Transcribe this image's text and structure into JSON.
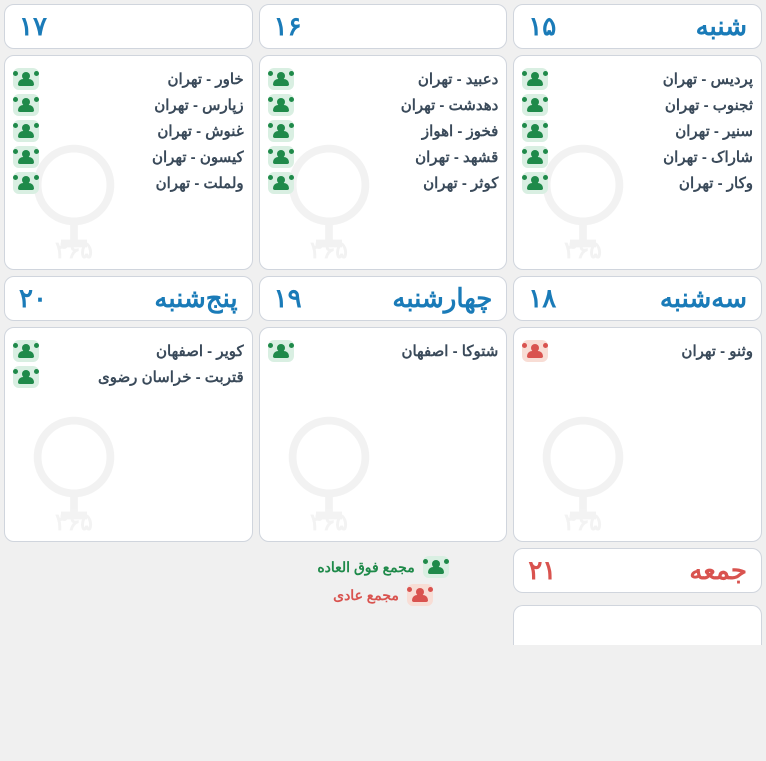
{
  "colors": {
    "header_text": "#1a7bb8",
    "holiday_text": "#d9534f",
    "event_text": "#3a4a5a",
    "icon_green_bg": "#d9efe2",
    "icon_green_fg": "#1f8a4a",
    "icon_red_bg": "#f8ddd5",
    "icon_red_fg": "#d9534f",
    "card_bg": "#ffffff",
    "card_border": "#d0d5dd",
    "page_bg": "#f0f0f0"
  },
  "watermark_text": "رهآورد ۳۶۵",
  "days": [
    {
      "name": "شنبه",
      "num": "۱۵",
      "holiday": false,
      "events": [
        {
          "text": "پردیس - تهران",
          "type": "green"
        },
        {
          "text": "ثجنوب - تهران",
          "type": "green"
        },
        {
          "text": "سنیر - تهران",
          "type": "green"
        },
        {
          "text": "شاراک - تهران",
          "type": "green"
        },
        {
          "text": "وکار - تهران",
          "type": "green"
        }
      ]
    },
    {
      "name": "",
      "num": "۱۶",
      "holiday": false,
      "events": [
        {
          "text": "دعبید - تهران",
          "type": "green"
        },
        {
          "text": "دهدشت - تهران",
          "type": "green"
        },
        {
          "text": "فخوز - اهواز",
          "type": "green"
        },
        {
          "text": "قشهد - تهران",
          "type": "green"
        },
        {
          "text": "کوثر - تهران",
          "type": "green"
        }
      ]
    },
    {
      "name": "",
      "num": "۱۷",
      "holiday": false,
      "events": [
        {
          "text": "خاور - تهران",
          "type": "green"
        },
        {
          "text": "زپارس - تهران",
          "type": "green"
        },
        {
          "text": "غنوش - تهران",
          "type": "green"
        },
        {
          "text": "کیسون - تهران",
          "type": "green"
        },
        {
          "text": "ولملت - تهران",
          "type": "green"
        }
      ]
    },
    {
      "name": "سه‌شنبه",
      "num": "۱۸",
      "holiday": false,
      "events": [
        {
          "text": "وثنو - تهران",
          "type": "red"
        }
      ]
    },
    {
      "name": "چهارشنبه",
      "num": "۱۹",
      "holiday": false,
      "events": [
        {
          "text": "شتوکا - اصفهان",
          "type": "green"
        }
      ]
    },
    {
      "name": "پنج‌شنبه",
      "num": "۲۰",
      "holiday": false,
      "events": [
        {
          "text": "کویر - اصفهان",
          "type": "green"
        },
        {
          "text": "قتربت - خراسان رضوی",
          "type": "green"
        }
      ]
    },
    {
      "name": "جمعه",
      "num": "۲۱",
      "holiday": true,
      "events": []
    }
  ],
  "legend": {
    "extraordinary": "مجمع فوق العاده",
    "ordinary": "مجمع عادی"
  }
}
